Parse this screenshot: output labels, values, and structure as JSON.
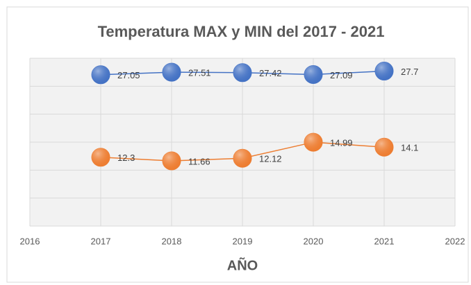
{
  "chart_data": {
    "type": "line",
    "title": "Temperatura MAX y MIN  del 2017 - 2021",
    "xlabel": "AÑO",
    "x": [
      2017,
      2018,
      2019,
      2020,
      2021
    ],
    "series": [
      {
        "name": "MAX",
        "color": "#4472c4",
        "values": [
          27.05,
          27.51,
          27.42,
          27.09,
          27.7
        ]
      },
      {
        "name": "MIN",
        "color": "#ed7d31",
        "values": [
          12.3,
          11.66,
          12.12,
          14.99,
          14.1
        ]
      }
    ],
    "xlim": [
      2016,
      2022
    ],
    "xticks": [
      2016,
      2017,
      2018,
      2019,
      2020,
      2021,
      2022
    ],
    "ylim": [
      0,
      30
    ],
    "yticks": [
      0,
      5,
      10,
      15,
      20,
      25,
      30
    ],
    "grid": true
  }
}
